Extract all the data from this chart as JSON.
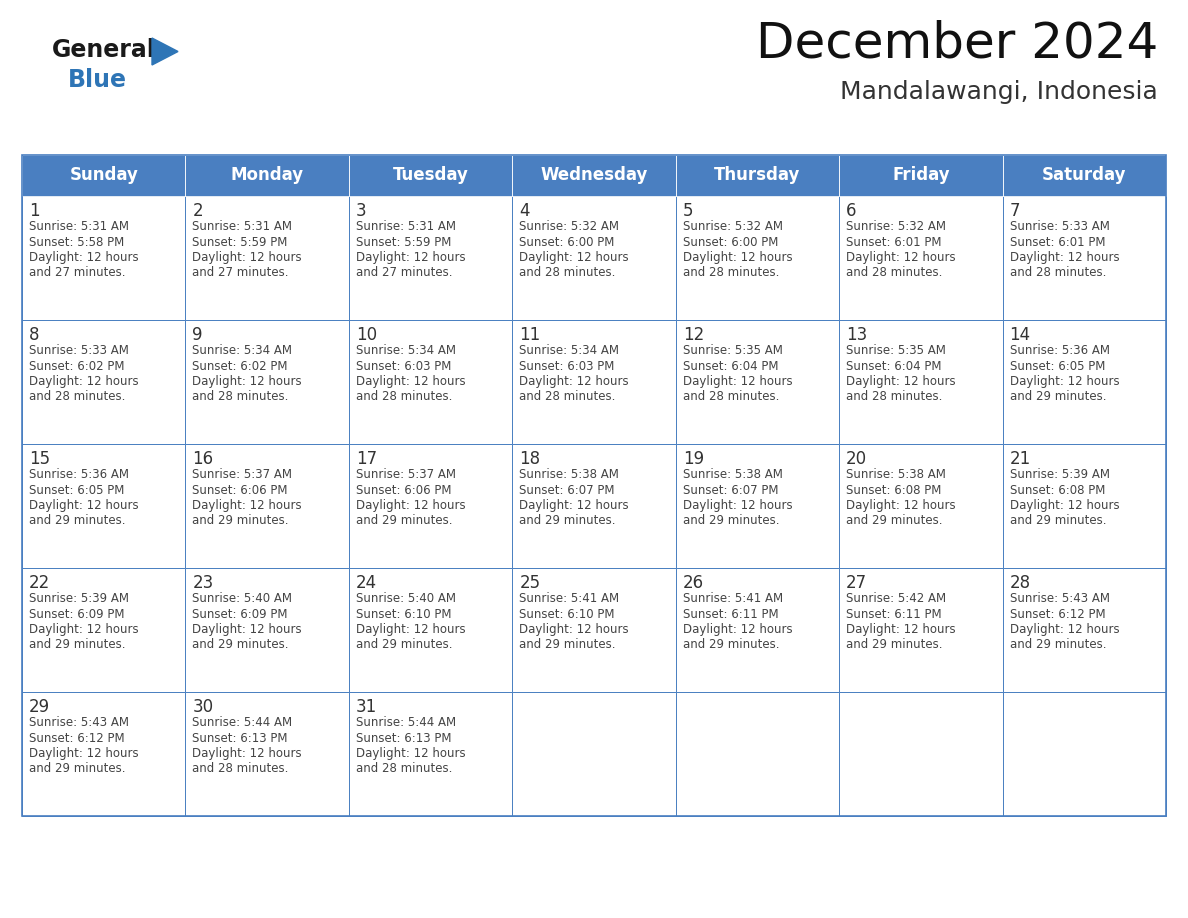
{
  "title": "December 2024",
  "subtitle": "Mandalawangi, Indonesia",
  "days_of_week": [
    "Sunday",
    "Monday",
    "Tuesday",
    "Wednesday",
    "Thursday",
    "Friday",
    "Saturday"
  ],
  "header_bg": "#4A7FC1",
  "header_text": "#FFFFFF",
  "cell_border": "#4A7FC1",
  "day_num_color": "#333333",
  "cell_text_color": "#444444",
  "logo_general_color": "#1a1a1a",
  "logo_blue_color": "#2E75B6",
  "calendar_data": [
    [
      {
        "day": 1,
        "sunrise": "5:31 AM",
        "sunset": "5:58 PM",
        "daylight_h": "12 hours",
        "daylight_m": "and 27 minutes."
      },
      {
        "day": 2,
        "sunrise": "5:31 AM",
        "sunset": "5:59 PM",
        "daylight_h": "12 hours",
        "daylight_m": "and 27 minutes."
      },
      {
        "day": 3,
        "sunrise": "5:31 AM",
        "sunset": "5:59 PM",
        "daylight_h": "12 hours",
        "daylight_m": "and 27 minutes."
      },
      {
        "day": 4,
        "sunrise": "5:32 AM",
        "sunset": "6:00 PM",
        "daylight_h": "12 hours",
        "daylight_m": "and 28 minutes."
      },
      {
        "day": 5,
        "sunrise": "5:32 AM",
        "sunset": "6:00 PM",
        "daylight_h": "12 hours",
        "daylight_m": "and 28 minutes."
      },
      {
        "day": 6,
        "sunrise": "5:32 AM",
        "sunset": "6:01 PM",
        "daylight_h": "12 hours",
        "daylight_m": "and 28 minutes."
      },
      {
        "day": 7,
        "sunrise": "5:33 AM",
        "sunset": "6:01 PM",
        "daylight_h": "12 hours",
        "daylight_m": "and 28 minutes."
      }
    ],
    [
      {
        "day": 8,
        "sunrise": "5:33 AM",
        "sunset": "6:02 PM",
        "daylight_h": "12 hours",
        "daylight_m": "and 28 minutes."
      },
      {
        "day": 9,
        "sunrise": "5:34 AM",
        "sunset": "6:02 PM",
        "daylight_h": "12 hours",
        "daylight_m": "and 28 minutes."
      },
      {
        "day": 10,
        "sunrise": "5:34 AM",
        "sunset": "6:03 PM",
        "daylight_h": "12 hours",
        "daylight_m": "and 28 minutes."
      },
      {
        "day": 11,
        "sunrise": "5:34 AM",
        "sunset": "6:03 PM",
        "daylight_h": "12 hours",
        "daylight_m": "and 28 minutes."
      },
      {
        "day": 12,
        "sunrise": "5:35 AM",
        "sunset": "6:04 PM",
        "daylight_h": "12 hours",
        "daylight_m": "and 28 minutes."
      },
      {
        "day": 13,
        "sunrise": "5:35 AM",
        "sunset": "6:04 PM",
        "daylight_h": "12 hours",
        "daylight_m": "and 28 minutes."
      },
      {
        "day": 14,
        "sunrise": "5:36 AM",
        "sunset": "6:05 PM",
        "daylight_h": "12 hours",
        "daylight_m": "and 29 minutes."
      }
    ],
    [
      {
        "day": 15,
        "sunrise": "5:36 AM",
        "sunset": "6:05 PM",
        "daylight_h": "12 hours",
        "daylight_m": "and 29 minutes."
      },
      {
        "day": 16,
        "sunrise": "5:37 AM",
        "sunset": "6:06 PM",
        "daylight_h": "12 hours",
        "daylight_m": "and 29 minutes."
      },
      {
        "day": 17,
        "sunrise": "5:37 AM",
        "sunset": "6:06 PM",
        "daylight_h": "12 hours",
        "daylight_m": "and 29 minutes."
      },
      {
        "day": 18,
        "sunrise": "5:38 AM",
        "sunset": "6:07 PM",
        "daylight_h": "12 hours",
        "daylight_m": "and 29 minutes."
      },
      {
        "day": 19,
        "sunrise": "5:38 AM",
        "sunset": "6:07 PM",
        "daylight_h": "12 hours",
        "daylight_m": "and 29 minutes."
      },
      {
        "day": 20,
        "sunrise": "5:38 AM",
        "sunset": "6:08 PM",
        "daylight_h": "12 hours",
        "daylight_m": "and 29 minutes."
      },
      {
        "day": 21,
        "sunrise": "5:39 AM",
        "sunset": "6:08 PM",
        "daylight_h": "12 hours",
        "daylight_m": "and 29 minutes."
      }
    ],
    [
      {
        "day": 22,
        "sunrise": "5:39 AM",
        "sunset": "6:09 PM",
        "daylight_h": "12 hours",
        "daylight_m": "and 29 minutes."
      },
      {
        "day": 23,
        "sunrise": "5:40 AM",
        "sunset": "6:09 PM",
        "daylight_h": "12 hours",
        "daylight_m": "and 29 minutes."
      },
      {
        "day": 24,
        "sunrise": "5:40 AM",
        "sunset": "6:10 PM",
        "daylight_h": "12 hours",
        "daylight_m": "and 29 minutes."
      },
      {
        "day": 25,
        "sunrise": "5:41 AM",
        "sunset": "6:10 PM",
        "daylight_h": "12 hours",
        "daylight_m": "and 29 minutes."
      },
      {
        "day": 26,
        "sunrise": "5:41 AM",
        "sunset": "6:11 PM",
        "daylight_h": "12 hours",
        "daylight_m": "and 29 minutes."
      },
      {
        "day": 27,
        "sunrise": "5:42 AM",
        "sunset": "6:11 PM",
        "daylight_h": "12 hours",
        "daylight_m": "and 29 minutes."
      },
      {
        "day": 28,
        "sunrise": "5:43 AM",
        "sunset": "6:12 PM",
        "daylight_h": "12 hours",
        "daylight_m": "and 29 minutes."
      }
    ],
    [
      {
        "day": 29,
        "sunrise": "5:43 AM",
        "sunset": "6:12 PM",
        "daylight_h": "12 hours",
        "daylight_m": "and 29 minutes."
      },
      {
        "day": 30,
        "sunrise": "5:44 AM",
        "sunset": "6:13 PM",
        "daylight_h": "12 hours",
        "daylight_m": "and 28 minutes."
      },
      {
        "day": 31,
        "sunrise": "5:44 AM",
        "sunset": "6:13 PM",
        "daylight_h": "12 hours",
        "daylight_m": "and 28 minutes."
      },
      null,
      null,
      null,
      null
    ]
  ],
  "fig_width": 11.88,
  "fig_height": 9.18,
  "dpi": 100
}
